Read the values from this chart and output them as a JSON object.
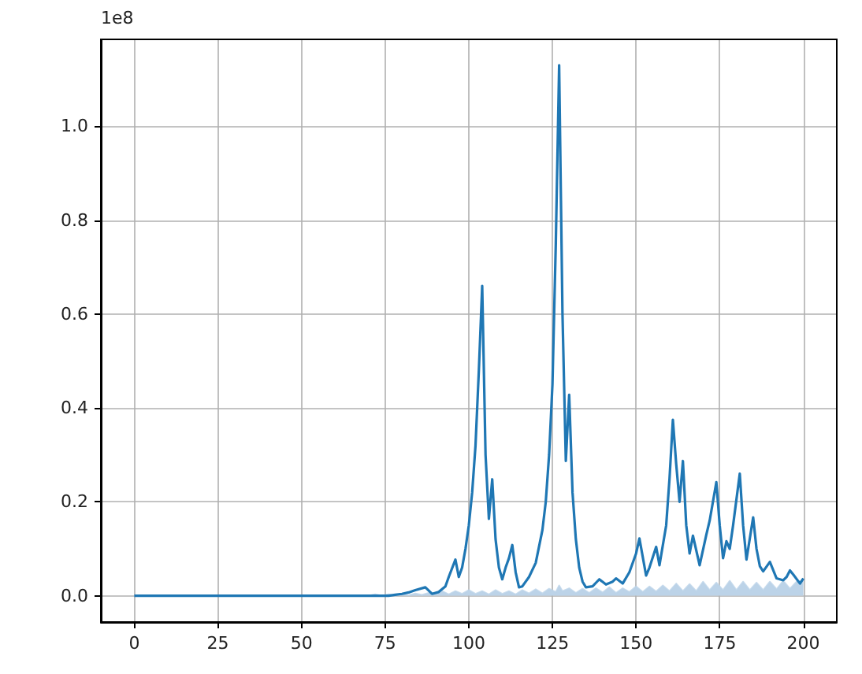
{
  "chart_data": {
    "type": "line",
    "annotations": [
      "1e8"
    ],
    "xlim": [
      -10,
      210
    ],
    "xticks": [
      0,
      25,
      50,
      75,
      100,
      125,
      150,
      175,
      200
    ],
    "ylim": [
      -0.056,
      1.185
    ],
    "yticks": [
      {
        "value": 0,
        "label": "0.0"
      },
      {
        "value": 0.2,
        "label": "0.2"
      },
      {
        "value": 0.4,
        "label": "0.4"
      },
      {
        "value": 0.6,
        "label": "0.6"
      },
      {
        "value": 0.8,
        "label": "0.8"
      },
      {
        "value": 1.0,
        "label": "1.0"
      }
    ],
    "grid": true,
    "series": [
      {
        "type": "area",
        "color": "#bcd3e8",
        "x": [
          0,
          70,
          72,
          74,
          76,
          78,
          80,
          82,
          84,
          86,
          88,
          90,
          92,
          94,
          96,
          98,
          100,
          102,
          104,
          106,
          108,
          110,
          112,
          114,
          116,
          118,
          120,
          122,
          124,
          126,
          127,
          128,
          130,
          132,
          134,
          136,
          138,
          140,
          142,
          144,
          146,
          148,
          150,
          152,
          154,
          156,
          158,
          160,
          162,
          164,
          166,
          168,
          170,
          172,
          174,
          176,
          178,
          180,
          182,
          184,
          186,
          188,
          190,
          192,
          194,
          196,
          198,
          200
        ],
        "values": [
          0,
          0,
          0.003,
          0,
          0.003,
          0,
          0.004,
          0.001,
          0.005,
          0.002,
          0.006,
          0.003,
          0.01,
          0.003,
          0.01,
          0.004,
          0.012,
          0.004,
          0.01,
          0.003,
          0.012,
          0.004,
          0.01,
          0.003,
          0.012,
          0.005,
          0.014,
          0.005,
          0.015,
          0.008,
          0.022,
          0.01,
          0.016,
          0.006,
          0.015,
          0.006,
          0.016,
          0.007,
          0.018,
          0.006,
          0.016,
          0.008,
          0.02,
          0.008,
          0.02,
          0.009,
          0.022,
          0.01,
          0.026,
          0.01,
          0.025,
          0.01,
          0.03,
          0.012,
          0.028,
          0.012,
          0.032,
          0.012,
          0.03,
          0.012,
          0.028,
          0.012,
          0.03,
          0.014,
          0.032,
          0.015,
          0.03,
          0.032
        ]
      },
      {
        "color": "#1f77b4",
        "x": [
          0,
          10,
          20,
          30,
          40,
          50,
          60,
          70,
          76,
          78,
          80,
          82,
          84,
          87,
          89,
          91,
          93,
          94,
          96,
          97,
          98,
          99,
          100,
          101,
          102,
          103,
          104,
          105,
          106,
          107,
          108,
          109,
          110,
          111,
          112,
          113,
          114,
          115,
          116,
          118,
          120,
          122,
          123,
          124,
          125,
          126,
          127,
          128,
          129,
          130,
          131,
          132,
          133,
          134,
          135,
          137,
          139,
          141,
          143,
          144,
          146,
          148,
          150,
          151,
          153,
          154,
          156,
          157,
          159,
          160,
          161,
          162,
          163,
          164,
          165,
          166,
          167,
          169,
          171,
          172,
          174,
          175,
          176,
          177,
          178,
          179,
          181,
          182,
          183,
          185,
          186,
          187,
          188,
          190,
          192,
          194,
          195,
          196,
          197,
          199,
          200
        ],
        "values": [
          0,
          0,
          0,
          0,
          0,
          0,
          0,
          0,
          0,
          0.002,
          0.004,
          0.007,
          0.012,
          0.018,
          0.004,
          0.008,
          0.02,
          0.04,
          0.077,
          0.04,
          0.06,
          0.1,
          0.15,
          0.22,
          0.32,
          0.48,
          0.66,
          0.3,
          0.164,
          0.248,
          0.12,
          0.06,
          0.035,
          0.06,
          0.08,
          0.108,
          0.05,
          0.018,
          0.02,
          0.04,
          0.07,
          0.14,
          0.2,
          0.3,
          0.45,
          0.75,
          1.13,
          0.6,
          0.287,
          0.428,
          0.22,
          0.12,
          0.06,
          0.03,
          0.018,
          0.02,
          0.035,
          0.024,
          0.03,
          0.037,
          0.026,
          0.05,
          0.09,
          0.122,
          0.043,
          0.06,
          0.104,
          0.065,
          0.15,
          0.25,
          0.375,
          0.28,
          0.2,
          0.287,
          0.15,
          0.09,
          0.128,
          0.065,
          0.13,
          0.16,
          0.242,
          0.15,
          0.08,
          0.116,
          0.1,
          0.15,
          0.26,
          0.15,
          0.077,
          0.167,
          0.1,
          0.063,
          0.052,
          0.072,
          0.037,
          0.033,
          0.04,
          0.054,
          0.045,
          0.026,
          0.037
        ]
      }
    ]
  }
}
